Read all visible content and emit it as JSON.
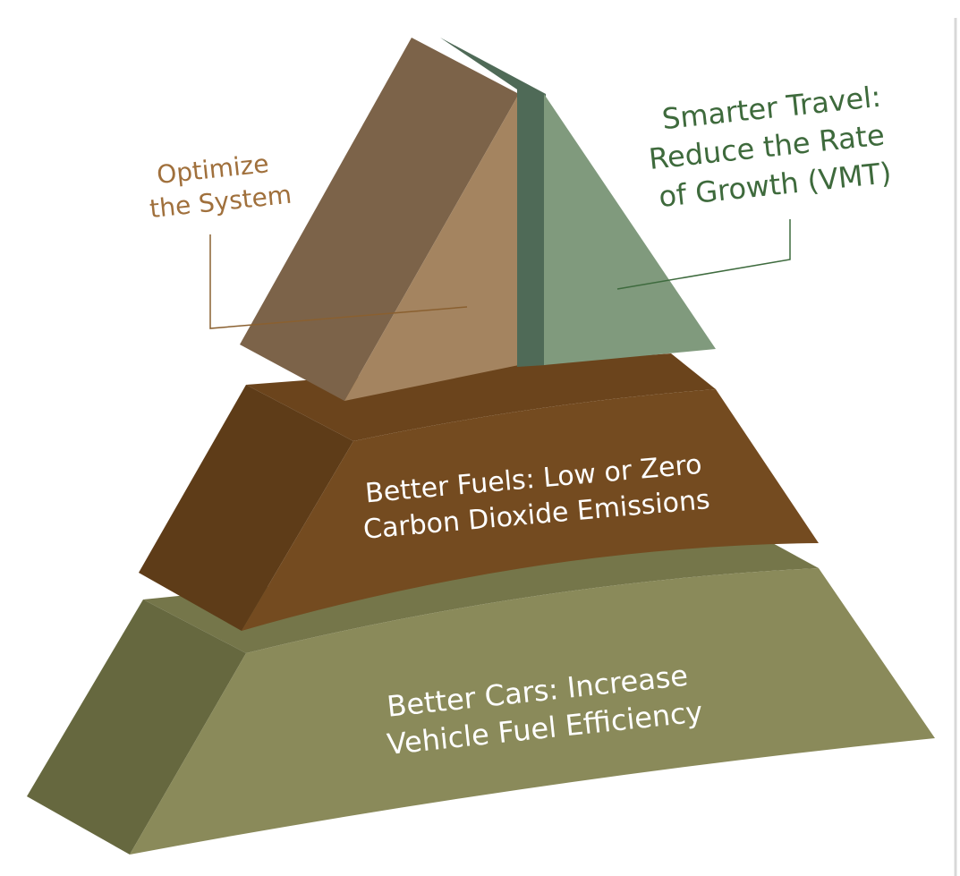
{
  "pyramid": {
    "tiers": [
      {
        "lines": [
          "Optimize",
          "the System"
        ]
      },
      {
        "lines": [
          "Smarter Travel:",
          "Reduce the Rate",
          "of Growth (VMT)"
        ]
      },
      {
        "lines": [
          "Better Fuels: Low or Zero",
          "Carbon Dioxide Emissions"
        ]
      },
      {
        "lines": [
          "Better Cars: Increase",
          "Vehicle Fuel Efficiency"
        ]
      }
    ]
  }
}
